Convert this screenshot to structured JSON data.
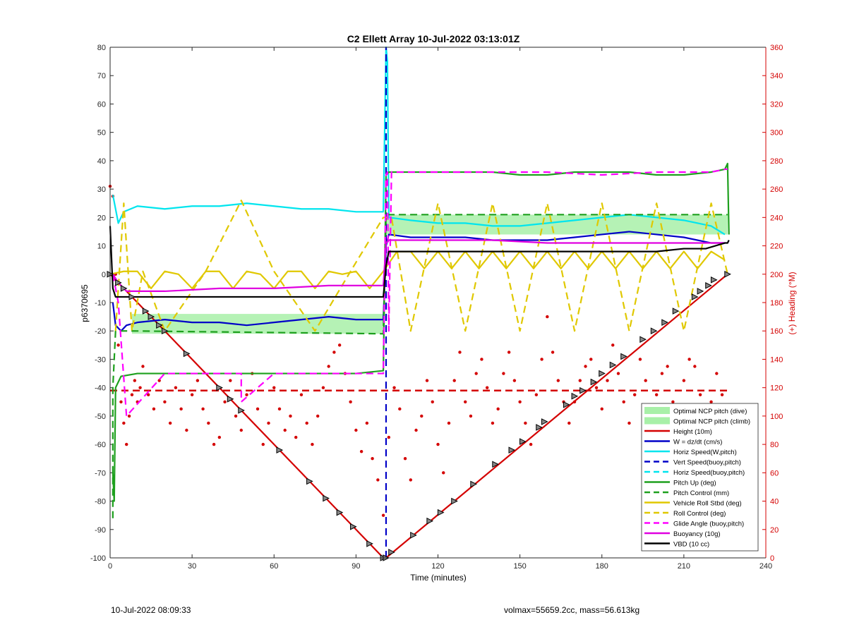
{
  "footer": {
    "left": "10-Jul-2022 08:09:33",
    "right": "volmax=55659.2cc, mass=56.613kg"
  },
  "colors": {
    "height": "#d40000",
    "w": "#0000c8",
    "horiz": "#00e5ee",
    "pitch": "#1ea01e",
    "roll": "#e0c800",
    "glide": "#ff00ff",
    "buoy": "#e000e0",
    "vbd": "#000000",
    "ncp": "#a8f0a8",
    "heading": "#d40000"
  },
  "chart_data": {
    "type": "line",
    "title": "C2 Ellett Array 10-Jul-2022 03:13:01Z",
    "xlabel": "Time (minutes)",
    "ylabel": "p6370695",
    "y2label": "(+) Heading (°M)",
    "xlim": [
      0,
      240
    ],
    "ylim": [
      -100,
      80
    ],
    "y2lim": [
      0,
      360
    ],
    "xticks": [
      "0",
      "30",
      "60",
      "90",
      "120",
      "150",
      "180",
      "210",
      "240"
    ],
    "yticks": [
      "-100",
      "-90",
      "-80",
      "-70",
      "-60",
      "-50",
      "-40",
      "-30",
      "-20",
      "-10",
      "0",
      "10",
      "20",
      "30",
      "40",
      "50",
      "60",
      "70",
      "80"
    ],
    "y2ticks": [
      "0",
      "20",
      "40",
      "60",
      "80",
      "100",
      "120",
      "140",
      "160",
      "180",
      "200",
      "220",
      "240",
      "260",
      "280",
      "300",
      "320",
      "340",
      "360"
    ],
    "legend_position": "bottom-right",
    "legend": [
      {
        "label": "Optimal NCP pitch (dive)",
        "style": "patch",
        "color": "#a8f0a8"
      },
      {
        "label": "Optimal NCP pitch (climb)",
        "style": "patch",
        "color": "#a8f0a8"
      },
      {
        "label": "Height (10m)",
        "style": "solid",
        "color": "#d40000"
      },
      {
        "label": "W = dz/dt (cm/s)",
        "style": "solid",
        "color": "#0000c8"
      },
      {
        "label": "Horiz Speed(W,pitch)",
        "style": "solid",
        "color": "#00e5ee"
      },
      {
        "label": "Vert Speed(buoy,pitch)",
        "style": "dashed",
        "color": "#0000c8"
      },
      {
        "label": "Horiz Speed(buoy,pitch)",
        "style": "dashed",
        "color": "#00e5ee"
      },
      {
        "label": "Pitch Up (deg)",
        "style": "solid",
        "color": "#1ea01e"
      },
      {
        "label": "Pitch Control (mm)",
        "style": "dashed",
        "color": "#1ea01e"
      },
      {
        "label": "Vehicle Roll Stbd (deg)",
        "style": "solid",
        "color": "#e0c800"
      },
      {
        "label": "Roll Control (deg)",
        "style": "dashed",
        "color": "#e0c800"
      },
      {
        "label": "Glide Angle (buoy,pitch)",
        "style": "dashed",
        "color": "#ff00ff"
      },
      {
        "label": "Buoyancy (10g)",
        "style": "solid",
        "color": "#e000e0"
      },
      {
        "label": "VBD (10 cc)",
        "style": "solid",
        "color": "#000000"
      }
    ],
    "ncp_bands": [
      {
        "name": "Optimal NCP pitch (dive)",
        "x": [
          8,
          100
        ],
        "y": [
          -21,
          -14
        ]
      },
      {
        "name": "Optimal NCP pitch (climb)",
        "x": [
          101,
          226
        ],
        "y": [
          14,
          21
        ]
      }
    ],
    "series": [
      {
        "name": "Height (10m)",
        "style": "solid",
        "color": "#d40000",
        "x": [
          0,
          100,
          101,
          226
        ],
        "y": [
          0,
          -100,
          -100,
          0
        ]
      },
      {
        "name": "W = dz/dt (cm/s)",
        "style": "solid",
        "color": "#0000c8",
        "x": [
          1,
          2,
          4,
          6,
          10,
          20,
          30,
          40,
          50,
          60,
          70,
          80,
          90,
          100,
          101,
          102,
          110,
          120,
          130,
          140,
          150,
          160,
          170,
          180,
          190,
          200,
          210,
          220,
          225
        ],
        "y": [
          -10,
          -18,
          -20,
          -18,
          -17,
          -16,
          -17,
          -17,
          -18,
          -17,
          -16,
          -15,
          -16,
          -16,
          10,
          14,
          13,
          13,
          13,
          12,
          12,
          12,
          13,
          14,
          15,
          14,
          13,
          11,
          11
        ]
      },
      {
        "name": "Horiz Speed(W,pitch)",
        "style": "solid",
        "color": "#00e5ee",
        "x": [
          1,
          3,
          5,
          10,
          20,
          30,
          40,
          50,
          60,
          70,
          80,
          90,
          100,
          101,
          101.5,
          102,
          110,
          120,
          130,
          140,
          150,
          160,
          170,
          180,
          190,
          200,
          210,
          220,
          225
        ],
        "y": [
          28,
          18,
          22,
          24,
          23,
          24,
          24,
          25,
          24,
          23,
          23,
          22,
          22,
          80,
          75,
          20,
          19,
          18,
          18,
          17,
          17,
          18,
          19,
          20,
          21,
          20,
          19,
          17,
          14
        ]
      },
      {
        "name": "Vert Speed(buoy,pitch)",
        "style": "dashed",
        "color": "#0000c8",
        "x": [
          101,
          101
        ],
        "y": [
          -100,
          80
        ]
      },
      {
        "name": "Pitch Up (deg)",
        "style": "solid",
        "color": "#1ea01e",
        "x": [
          1,
          1.5,
          2,
          3,
          4,
          10,
          20,
          30,
          40,
          50,
          60,
          70,
          80,
          90,
          100,
          101,
          102,
          110,
          120,
          130,
          140,
          150,
          160,
          170,
          180,
          190,
          200,
          210,
          220,
          225,
          226,
          226.5
        ],
        "y": [
          -70,
          -80,
          -40,
          -38,
          -36,
          -35,
          -35,
          -35,
          -35,
          -35,
          -35,
          -35,
          -35,
          -35,
          -34,
          35,
          36,
          36,
          36,
          36,
          36,
          35,
          35,
          36,
          36,
          36,
          35,
          35,
          36,
          37,
          39,
          14
        ]
      },
      {
        "name": "Pitch Control (mm)",
        "style": "dashed",
        "color": "#1ea01e",
        "x": [
          1,
          1,
          2,
          3,
          8,
          100,
          101,
          102,
          226
        ],
        "y": [
          -86,
          -40,
          -20,
          -20,
          -20,
          -21,
          21,
          21,
          21
        ]
      },
      {
        "name": "Vehicle Roll Stbd (deg)",
        "style": "solid",
        "color": "#e0c800",
        "x": [
          0,
          5,
          10,
          15,
          20,
          25,
          30,
          35,
          40,
          45,
          50,
          55,
          60,
          65,
          70,
          75,
          80,
          85,
          90,
          95,
          100,
          105,
          110,
          115,
          120,
          125,
          130,
          135,
          140,
          145,
          150,
          155,
          160,
          165,
          170,
          175,
          180,
          185,
          190,
          195,
          200,
          205,
          210,
          215,
          220,
          225
        ],
        "y": [
          0,
          1,
          1,
          -5,
          1,
          0,
          -5,
          1,
          1,
          -5,
          1,
          0,
          -5,
          1,
          1,
          -5,
          1,
          0,
          1,
          -5,
          1,
          8,
          8,
          2,
          8,
          2,
          8,
          2,
          8,
          2,
          8,
          2,
          8,
          2,
          8,
          2,
          8,
          2,
          8,
          2,
          8,
          2,
          8,
          2,
          8,
          5
        ]
      },
      {
        "name": "Roll Control (deg)",
        "style": "dashed",
        "color": "#e0c800",
        "x": [
          2,
          5,
          8,
          12,
          20,
          35,
          48,
          60,
          75,
          88,
          100,
          103,
          110,
          120,
          130,
          140,
          150,
          160,
          170,
          180,
          190,
          200,
          210,
          220,
          226
        ],
        "y": [
          -20,
          25,
          -20,
          1,
          -20,
          1,
          26,
          1,
          -20,
          1,
          20,
          20,
          -20,
          25,
          -20,
          25,
          -20,
          25,
          -20,
          25,
          -20,
          25,
          -20,
          25,
          0
        ]
      },
      {
        "name": "Glide Angle (buoy,pitch)",
        "style": "dashed",
        "color": "#ff00ff",
        "x": [
          1,
          3,
          6,
          20,
          40,
          48,
          48,
          60,
          80,
          100,
          101,
          101.5,
          102,
          103,
          120,
          140,
          160,
          180,
          200,
          220,
          225,
          226
        ],
        "y": [
          0,
          -10,
          -50,
          -35,
          -35,
          -35,
          -45,
          -35,
          -35,
          -35,
          35,
          36,
          -20,
          36,
          36,
          36,
          36,
          35,
          36,
          36,
          37,
          37
        ]
      },
      {
        "name": "Buoyancy (10g)",
        "style": "solid",
        "color": "#e000e0",
        "x": [
          1,
          3,
          6,
          20,
          40,
          60,
          80,
          100,
          101,
          102,
          110,
          120,
          140,
          160,
          180,
          200,
          220,
          225
        ],
        "y": [
          0,
          -3,
          -6,
          -6,
          -5,
          -5,
          -4,
          -4,
          11,
          12,
          12,
          12,
          12,
          11,
          11,
          11,
          11,
          11
        ]
      },
      {
        "name": "VBD (10 cc)",
        "style": "solid",
        "color": "#000000",
        "x": [
          0,
          1,
          2,
          5,
          10,
          30,
          50,
          70,
          90,
          100,
          101,
          102,
          110,
          140,
          150,
          170,
          200,
          210,
          218,
          225,
          226,
          226.5
        ],
        "y": [
          17,
          -5,
          -8,
          -8,
          -8,
          -8,
          -8,
          -8,
          -8,
          -8,
          3,
          8,
          8,
          8,
          8,
          8,
          8,
          9,
          9,
          11,
          11,
          12
        ]
      },
      {
        "name": "Heading (°M)",
        "axis": "right",
        "style": "dashed",
        "color": "#d40000",
        "x": [
          0,
          226
        ],
        "y": [
          118,
          118
        ]
      }
    ],
    "markers_on_height": {
      "x": [
        0,
        3,
        5,
        8,
        13,
        15,
        18,
        20,
        28,
        40,
        44,
        48,
        62,
        73,
        79,
        84,
        89,
        95,
        100,
        101,
        103,
        111,
        117,
        121,
        126,
        133,
        141,
        147,
        151,
        157,
        159,
        167,
        170,
        173,
        177,
        180,
        184,
        188,
        195,
        199,
        203,
        207,
        214,
        216,
        219,
        221,
        226
      ],
      "y": [
        0,
        -3,
        -5,
        -8,
        -13,
        -15,
        -18,
        -20,
        -28,
        -40,
        -44,
        -48,
        -62,
        -73,
        -79,
        -84,
        -89,
        -95,
        -100,
        -100,
        -98,
        -92,
        -87,
        -84,
        -80,
        -74,
        -67,
        -62,
        -59,
        -54,
        -52,
        -46,
        -43,
        -41,
        -38,
        -35,
        -32,
        -29,
        -23,
        -20,
        -17,
        -13,
        -8,
        -6,
        -4,
        -2,
        0
      ]
    },
    "heading_points": {
      "x": [
        0,
        1,
        2,
        3,
        4,
        5,
        6,
        7,
        8,
        9,
        10,
        11,
        12,
        14,
        16,
        18,
        20,
        22,
        24,
        26,
        28,
        30,
        32,
        34,
        36,
        38,
        40,
        42,
        44,
        46,
        48,
        50,
        52,
        54,
        56,
        58,
        60,
        62,
        64,
        66,
        68,
        70,
        72,
        74,
        76,
        78,
        80,
        82,
        84,
        86,
        88,
        90,
        92,
        94,
        96,
        98,
        100,
        102,
        104,
        106,
        108,
        110,
        112,
        114,
        116,
        118,
        120,
        122,
        124,
        126,
        128,
        130,
        132,
        134,
        136,
        138,
        140,
        142,
        144,
        146,
        148,
        150,
        152,
        154,
        156,
        158,
        160,
        162,
        164,
        166,
        168,
        170,
        172,
        174,
        176,
        178,
        180,
        182,
        184,
        186,
        188,
        190,
        192,
        194,
        196,
        198,
        200,
        202,
        204,
        206,
        208,
        210,
        212,
        214,
        216,
        218,
        220,
        222,
        224,
        226
      ],
      "y": [
        262,
        255,
        200,
        150,
        110,
        95,
        80,
        100,
        115,
        125,
        110,
        120,
        135,
        115,
        105,
        125,
        110,
        95,
        120,
        105,
        90,
        115,
        125,
        105,
        95,
        80,
        85,
        110,
        125,
        100,
        90,
        115,
        130,
        105,
        80,
        95,
        120,
        105,
        90,
        100,
        85,
        115,
        95,
        80,
        100,
        120,
        135,
        145,
        150,
        130,
        110,
        90,
        75,
        95,
        70,
        55,
        30,
        85,
        120,
        105,
        70,
        55,
        90,
        100,
        125,
        110,
        80,
        60,
        95,
        125,
        145,
        110,
        100,
        130,
        140,
        120,
        95,
        105,
        130,
        145,
        125,
        110,
        95,
        80,
        115,
        140,
        170,
        145,
        125,
        110,
        95,
        110,
        125,
        135,
        140,
        120,
        105,
        125,
        150,
        130,
        110,
        95,
        115,
        140,
        125,
        105,
        115,
        130,
        135,
        110,
        100,
        125,
        140,
        135,
        115,
        95,
        110,
        130,
        115,
        95
      ]
    }
  }
}
